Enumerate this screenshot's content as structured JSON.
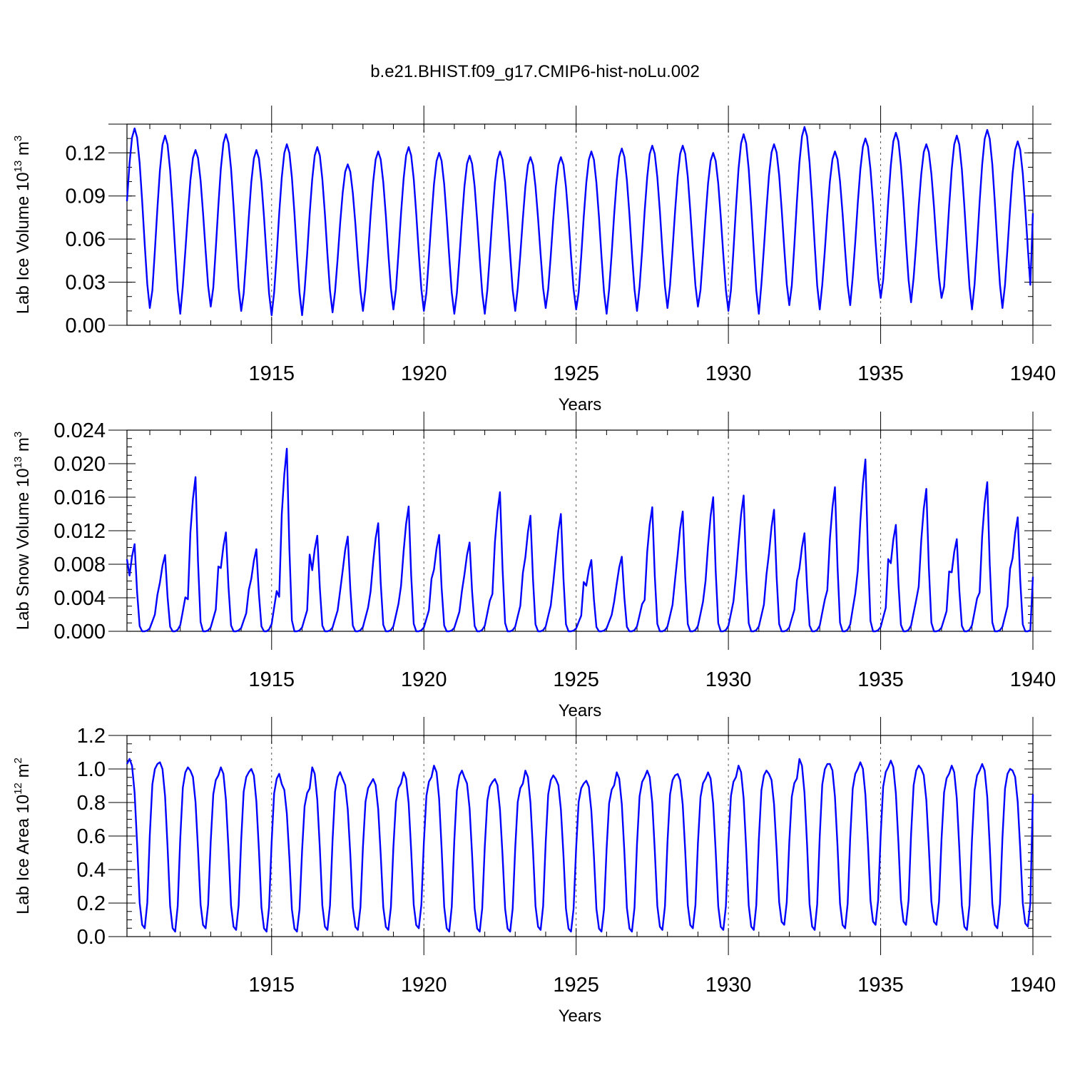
{
  "title": "b.e21.BHIST.f09_g17.CMIP6-hist-noLu.002",
  "colors": {
    "series": "#0000ff",
    "axes": "#000000",
    "grid": "#555555"
  },
  "chart_data": [
    {
      "type": "line",
      "name": "ice-volume",
      "xlabel": "Years",
      "ylabel": "Lab Ice Volume 10",
      "ylabel_exp": "13",
      "ylabel_unit": "m",
      "ylabel_unit_exp": "3",
      "xlim": [
        1910.25,
        1940.0
      ],
      "ylim": [
        0.0,
        0.14
      ],
      "yticks": [
        0.0,
        0.03,
        0.06,
        0.09,
        0.12
      ],
      "ytick_labels": [
        "0.00",
        "0.03",
        "0.06",
        "0.09",
        "0.12"
      ],
      "yminor": 0.01,
      "xticks": [
        1915,
        1920,
        1925,
        1930,
        1935,
        1940
      ],
      "xtick_labels": [
        "1915",
        "1920",
        "1925",
        "1930",
        "1935",
        "1940"
      ],
      "xminor": 1,
      "grid_x": [
        1915,
        1920,
        1925,
        1930,
        1935
      ],
      "start": 1910.25,
      "step": 0.0833333,
      "cycles": {
        "phase": 0.55,
        "max": [
          0.137,
          0.132,
          0.122,
          0.133,
          0.122,
          0.126,
          0.124,
          0.112,
          0.121,
          0.124,
          0.12,
          0.118,
          0.121,
          0.117,
          0.117,
          0.121,
          0.123,
          0.125,
          0.125,
          0.12,
          0.133,
          0.126,
          0.138,
          0.121,
          0.13,
          0.134,
          0.126,
          0.132,
          0.136,
          0.128
        ],
        "min": [
          0.012,
          0.008,
          0.013,
          0.01,
          0.007,
          0.007,
          0.009,
          0.01,
          0.011,
          0.01,
          0.008,
          0.008,
          0.01,
          0.012,
          0.011,
          0.008,
          0.01,
          0.012,
          0.013,
          0.01,
          0.008,
          0.014,
          0.011,
          0.014,
          0.019,
          0.016,
          0.019,
          0.011,
          0.012,
          0.013
        ],
        "end_value": 0.078
      }
    },
    {
      "type": "line",
      "name": "snow-volume",
      "xlabel": "Years",
      "ylabel": "Lab Snow Volume 10",
      "ylabel_exp": "13",
      "ylabel_unit": "m",
      "ylabel_unit_exp": "3",
      "xlim": [
        1910.25,
        1940.0
      ],
      "ylim": [
        0.0,
        0.024
      ],
      "yticks": [
        0.0,
        0.004,
        0.008,
        0.012,
        0.016,
        0.02,
        0.024
      ],
      "ytick_labels": [
        "0.000",
        "0.004",
        "0.008",
        "0.012",
        "0.016",
        "0.020",
        "0.024"
      ],
      "yminor": 0.001,
      "xticks": [
        1915,
        1920,
        1925,
        1930,
        1935,
        1940
      ],
      "xtick_labels": [
        "1915",
        "1920",
        "1925",
        "1930",
        "1935",
        "1940"
      ],
      "xminor": 1,
      "grid_x": [
        1915,
        1920,
        1925,
        1930,
        1935
      ],
      "start": 1910.25,
      "step": 0.0833333,
      "snow": {
        "peaks": [
          0.0104,
          0.0091,
          0.0184,
          0.0118,
          0.0098,
          0.0218,
          0.0114,
          0.0113,
          0.0129,
          0.0149,
          0.0115,
          0.0106,
          0.0166,
          0.0138,
          0.014,
          0.0085,
          0.0089,
          0.0148,
          0.0143,
          0.016,
          0.0162,
          0.0145,
          0.0117,
          0.0172,
          0.0205,
          0.0127,
          0.017,
          0.011,
          0.0178,
          0.0136
        ],
        "end_value": 0.0065
      }
    },
    {
      "type": "line",
      "name": "ice-area",
      "xlabel": "Years",
      "ylabel": "Lab Ice Area 10",
      "ylabel_exp": "12",
      "ylabel_unit": "m",
      "ylabel_unit_exp": "2",
      "xlim": [
        1910.25,
        1940.0
      ],
      "ylim": [
        0.0,
        1.2
      ],
      "yticks": [
        0.0,
        0.2,
        0.4,
        0.6,
        0.8,
        1.0,
        1.2
      ],
      "ytick_labels": [
        "0.0",
        "0.2",
        "0.4",
        "0.6",
        "0.8",
        "1.0",
        "1.2"
      ],
      "yminor": 0.05,
      "xticks": [
        1915,
        1920,
        1925,
        1930,
        1935,
        1940
      ],
      "xtick_labels": [
        "1915",
        "1920",
        "1925",
        "1930",
        "1935",
        "1940"
      ],
      "xminor": 1,
      "grid_x": [
        1915,
        1920,
        1925,
        1930,
        1935
      ],
      "start": 1910.25,
      "step": 0.0833333,
      "area": {
        "plateau": [
          1.06,
          1.04,
          0.99,
          1.01,
          1.0,
          0.91,
          1.01,
          0.94,
          0.94,
          0.98,
          1.02,
          0.95,
          0.94,
          0.99,
          0.94,
          0.93,
          0.98,
          0.99,
          0.97,
          0.98,
          1.02,
          0.97,
          1.06,
          1.03,
          1.04,
          1.05,
          1.0,
          1.02,
          1.03,
          0.99
        ],
        "min": [
          0.05,
          0.03,
          0.05,
          0.04,
          0.03,
          0.03,
          0.04,
          0.04,
          0.04,
          0.05,
          0.03,
          0.03,
          0.03,
          0.04,
          0.03,
          0.03,
          0.03,
          0.04,
          0.05,
          0.04,
          0.04,
          0.07,
          0.04,
          0.05,
          0.07,
          0.07,
          0.07,
          0.04,
          0.05,
          0.06
        ],
        "end_value": 0.85
      }
    }
  ]
}
